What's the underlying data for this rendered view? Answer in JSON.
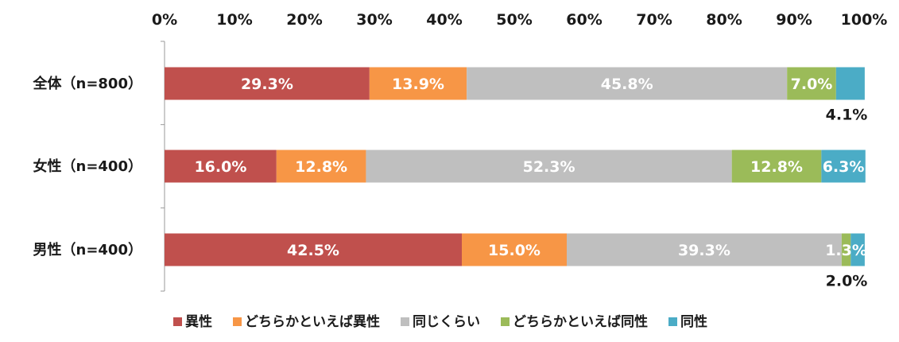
{
  "chart_data": {
    "type": "bar",
    "orientation": "horizontal",
    "stacked": true,
    "title": "",
    "xlabel": "",
    "ylabel": "",
    "xlim": [
      0,
      100
    ],
    "x_ticks": [
      "0%",
      "10%",
      "20%",
      "30%",
      "40%",
      "50%",
      "60%",
      "70%",
      "80%",
      "90%",
      "100%"
    ],
    "x_axis_position": "top",
    "grid": "none",
    "legend_position": "bottom",
    "categories": [
      "全体（n=800）",
      "女性（n=400）",
      "男性（n=400）"
    ],
    "series": [
      {
        "name": "異性",
        "color": "#C0504D",
        "values": [
          29.3,
          16.0,
          42.5
        ],
        "labels": [
          "29.3%",
          "16.0%",
          "42.5%"
        ]
      },
      {
        "name": "どちらかといえば異性",
        "color": "#F79646",
        "values": [
          13.9,
          12.8,
          15.0
        ],
        "labels": [
          "13.9%",
          "12.8%",
          "15.0%"
        ]
      },
      {
        "name": "同じくらい",
        "color": "#BFBFBF",
        "values": [
          45.8,
          52.3,
          39.3
        ],
        "labels": [
          "45.8%",
          "52.3%",
          "39.3%"
        ]
      },
      {
        "name": "どちらかといえば同性",
        "color": "#9BBB59",
        "values": [
          7.0,
          12.8,
          1.3
        ],
        "labels": [
          "7.0%",
          "12.8%",
          "1.3%"
        ]
      },
      {
        "name": "同性",
        "color": "#4BACC6",
        "values": [
          4.1,
          6.3,
          2.0
        ],
        "labels": [
          "4.1%",
          "6.3%",
          "2.0%"
        ]
      }
    ]
  }
}
